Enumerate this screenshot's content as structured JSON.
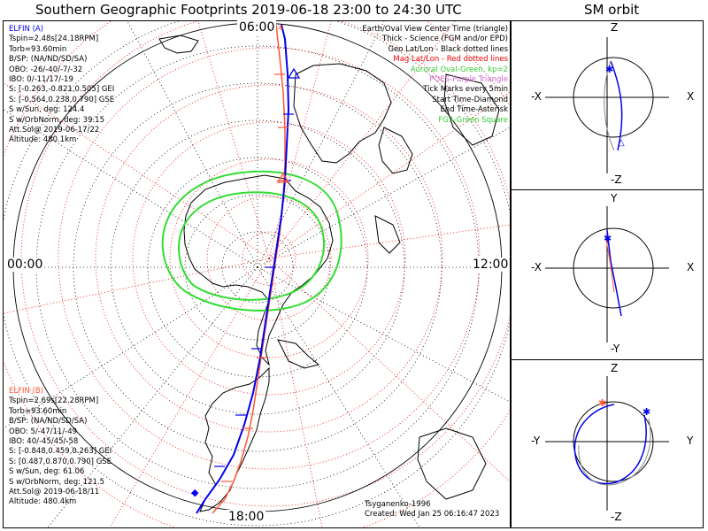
{
  "title": "Southern Geographic Footprints 2019-06-18 23:00 to 24:30 UTC",
  "sm_title": "SM orbit",
  "colors": {
    "elfin_a": "#0000ee",
    "elfin_b": "#ff5533",
    "geo_grid": "#000000",
    "mag_grid": "#ee0000",
    "auroral_oval": "#33dd33",
    "poes": "#cc66cc",
    "fgs": "#33cc33"
  },
  "hour_labels": {
    "top": "06:00",
    "right": "12:00",
    "left": "00:00",
    "bottom": "18:00"
  },
  "elfin_a": {
    "name": "ELFIN (A)",
    "lines": [
      "Tspin=2.48s[24.18RPM]",
      "Torb=93.60min",
      "B/SP: (NA/ND/SD/SA)",
      "OBO: -26/-40/-7/-32",
      "IBO: 0/-11/17/-19",
      "S: [-0.263,-0.821,0.505] GEI",
      "S: [-0.564,0.238,0.790] GSE",
      "S w/Sun, deg: 124.4",
      "S w/OrbNorm, deg: 39.15",
      "Att.Sol@ 2019-06-17/22",
      "Altitude: 480.1km"
    ]
  },
  "elfin_b": {
    "name": "ELFIN (B)",
    "lines": [
      "Tspin=2.69s[22.28RPM]",
      "Torb=93.60min",
      "B/SP: (NA/ND/SD/SA)",
      "OBO: 5/-47/11/-49",
      "IBO: 40/-45/45/-58",
      "S: [-0.848,0.459,0.263] GEI",
      "S: [0.487,0.870,0.790] GSE",
      "S w/Sun, deg: 61.06",
      "S w/OrbNorm, deg: 121.5",
      "Att.Sol@ 2019-06-18/11",
      "Altitude: 480.4km"
    ]
  },
  "legend": [
    {
      "text": "Earth/Oval View Center Time (triangle)",
      "color": "#000000"
    },
    {
      "text": "Thick - Science (FGM and/or EPD)",
      "color": "#000000"
    },
    {
      "text": "Geo Lat/Lon - Black dotted lines",
      "color": "#000000"
    },
    {
      "text": "Mag Lat/Lon - Red dotted lines",
      "color": "#ee0000"
    },
    {
      "text": "Auroral Oval-Green, kp=2",
      "color": "#33cc33"
    },
    {
      "text": "POES-Purple Triangle",
      "color": "#cc66cc"
    },
    {
      "text": "Tick Marks every 5min",
      "color": "#000000"
    },
    {
      "text": "Start Time-Diamond",
      "color": "#000000"
    },
    {
      "text": "End Time-Asterisk",
      "color": "#000000"
    },
    {
      "text": "FGS-Green Square",
      "color": "#33cc33"
    }
  ],
  "credits": {
    "author": "Tsyganenko-1996",
    "created": "Created: Wed Jan 25 06:16:47 2023"
  },
  "orbit_panels": [
    {
      "name": "xz",
      "top": "Z",
      "bottom": "-Z",
      "left": "-X",
      "right": "X"
    },
    {
      "name": "xy",
      "top": "Y",
      "bottom": "-Y",
      "left": "-X",
      "right": "X"
    },
    {
      "name": "yz",
      "top": "Z",
      "bottom": "-Z",
      "left": "-Y",
      "right": "Y"
    }
  ]
}
